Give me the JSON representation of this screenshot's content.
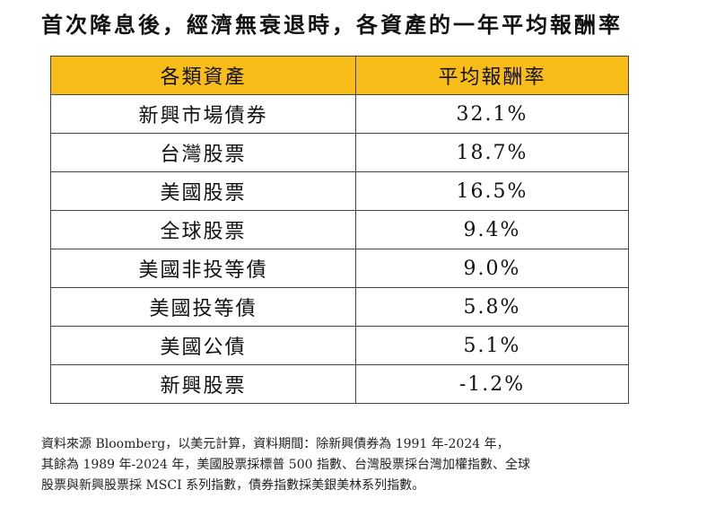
{
  "title": "首次降息後，經濟無衰退時，各資產的一年平均報酬率",
  "table": {
    "headers": [
      "各類資產",
      "平均報酬率"
    ],
    "rows": [
      {
        "asset": "新興市場債券",
        "return": "32.1%"
      },
      {
        "asset": "台灣股票",
        "return": "18.7%"
      },
      {
        "asset": "美國股票",
        "return": "16.5%"
      },
      {
        "asset": "全球股票",
        "return": "9.4%"
      },
      {
        "asset": "美國非投等債",
        "return": "9.0%"
      },
      {
        "asset": "美國投等債",
        "return": "5.8%"
      },
      {
        "asset": "美國公債",
        "return": "5.1%"
      },
      {
        "asset": "新興股票",
        "return": "-1.2%"
      }
    ]
  },
  "footnote": {
    "lines": [
      "資料來源 Bloomberg，以美元計算，資料期間：除新興債券為 1991 年-2024 年，",
      "其餘為 1989 年-2024 年，美國股票採標普 500 指數、台灣股票採台灣加權指數、全球",
      "股票與新興股票採 MSCI 系列指數，債券指數採美銀美林系列指數。"
    ]
  },
  "colors": {
    "header_background": "#f9bd1a",
    "border": "#444444"
  }
}
